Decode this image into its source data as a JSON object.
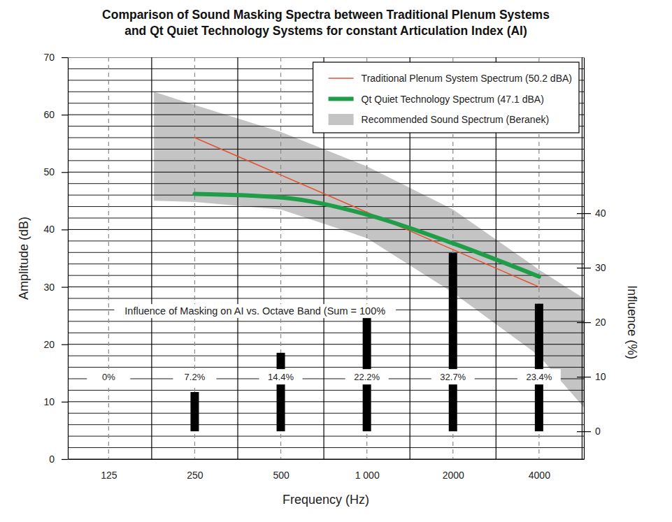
{
  "chart_data": {
    "type": "line",
    "title": "Comparison of Sound Masking Spectra between Traditional Plenum Systems\nand Qt Quiet Technology Systems for constant Articulation Index (AI)",
    "x_label": "Frequency (Hz)",
    "y_label": "Amplitude (dB)",
    "y2_label": "Influence (%)",
    "log": "x",
    "xlim": [
      90,
      5740
    ],
    "xticks": [
      125,
      250,
      500,
      {
        "value": 1000,
        "label": "1 000"
      },
      2000,
      4000
    ],
    "ylim": [
      0,
      70
    ],
    "yticks": [
      0,
      10,
      20,
      30,
      40,
      50,
      60,
      70
    ],
    "y2lim": [
      -5.1,
      68.6
    ],
    "y2ticks": [
      0,
      10,
      20,
      30,
      40
    ],
    "grid": true,
    "legend": "upper right",
    "data_labels": true,
    "annotations": [
      {
        "text": "Influence of Masking on AI vs. Octave Band (Sum = 100%"
      }
    ],
    "series": [
      {
        "name": "Traditional Plenum System Spectrum (50.2 dBA)",
        "type": "line",
        "color": "#e5512d",
        "x": [
          250,
          500,
          1000,
          2000,
          4000
        ],
        "values": [
          56,
          49.5,
          43,
          36.5,
          30
        ]
      },
      {
        "name": "Qt Quiet Technology Spectrum (47.1 dBA)",
        "type": "line",
        "color": "#1f9d48",
        "x": [
          250,
          500,
          1000,
          2000,
          4000
        ],
        "values": [
          46.2,
          45.6,
          42.6,
          37.6,
          31.8
        ]
      },
      {
        "name": "Recommended Sound Spectrum (Beranek)",
        "type": "area",
        "color": "#c4c4c4",
        "x": [
          180,
          250,
          500,
          1000,
          2000,
          4000,
          5740
        ],
        "values": [
          64,
          61.7,
          57,
          51,
          43.5,
          33,
          28
        ],
        "lower": [
          45,
          44.8,
          43.5,
          38.5,
          29,
          18,
          9
        ]
      },
      {
        "type": "bar",
        "axis": "y2",
        "color": "#000000",
        "x": [
          125,
          250,
          500,
          1000,
          2000,
          4000
        ],
        "values": [
          0,
          7.2,
          14.4,
          22.2,
          32.7,
          23.4
        ],
        "value_labels": [
          "0%",
          "7.2%",
          "14.4%",
          "22.2%",
          "32.7%",
          "23.4%"
        ]
      }
    ]
  }
}
